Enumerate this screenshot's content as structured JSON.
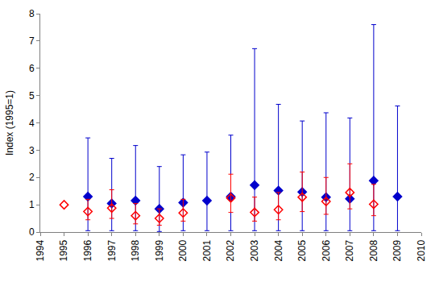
{
  "chart_data": {
    "type": "scatter",
    "y_label": "Index (1995=1)",
    "x": [
      1995,
      1996,
      1997,
      1998,
      1999,
      2000,
      2001,
      2002,
      2003,
      2004,
      2005,
      2006,
      2007,
      2008,
      2009
    ],
    "xlim": [
      1994,
      2010
    ],
    "xticks": [
      1994,
      1995,
      1996,
      1997,
      1998,
      1999,
      2000,
      2001,
      2002,
      2003,
      2004,
      2005,
      2006,
      2007,
      2008,
      2009,
      2010
    ],
    "ylim": [
      0,
      8
    ],
    "yticks": [
      0,
      1,
      2,
      3,
      4,
      5,
      6,
      7,
      8
    ],
    "grid": false,
    "series": [
      {
        "color": "#0000cc",
        "marker": "diamond",
        "values": [
          null,
          1.3,
          1.05,
          1.15,
          0.85,
          1.08,
          1.15,
          1.3,
          1.72,
          1.52,
          1.47,
          1.28,
          1.22,
          1.88,
          1.3
        ],
        "upper": [
          null,
          3.45,
          2.7,
          3.17,
          2.4,
          2.83,
          2.93,
          3.55,
          6.72,
          4.68,
          4.07,
          4.37,
          4.18,
          7.6,
          4.62
        ],
        "lower": [
          null,
          0.05,
          0.05,
          0.05,
          0.02,
          0.05,
          0.05,
          0.05,
          0.05,
          0.05,
          0.05,
          0.05,
          0.05,
          0.05,
          0.05
        ]
      },
      {
        "color": "#ff0000",
        "marker": "diamond-open",
        "values": [
          1.0,
          0.75,
          0.88,
          0.6,
          0.5,
          0.7,
          null,
          1.25,
          0.72,
          0.82,
          1.28,
          1.12,
          1.45,
          1.02,
          null
        ],
        "upper": [
          null,
          1.2,
          1.55,
          1.05,
          0.85,
          1.2,
          null,
          2.12,
          1.28,
          1.45,
          2.2,
          2.0,
          2.5,
          1.75,
          null
        ],
        "lower": [
          null,
          0.45,
          0.5,
          0.3,
          0.25,
          0.4,
          null,
          0.72,
          0.4,
          0.45,
          0.75,
          0.65,
          0.85,
          0.6,
          null
        ]
      }
    ]
  }
}
